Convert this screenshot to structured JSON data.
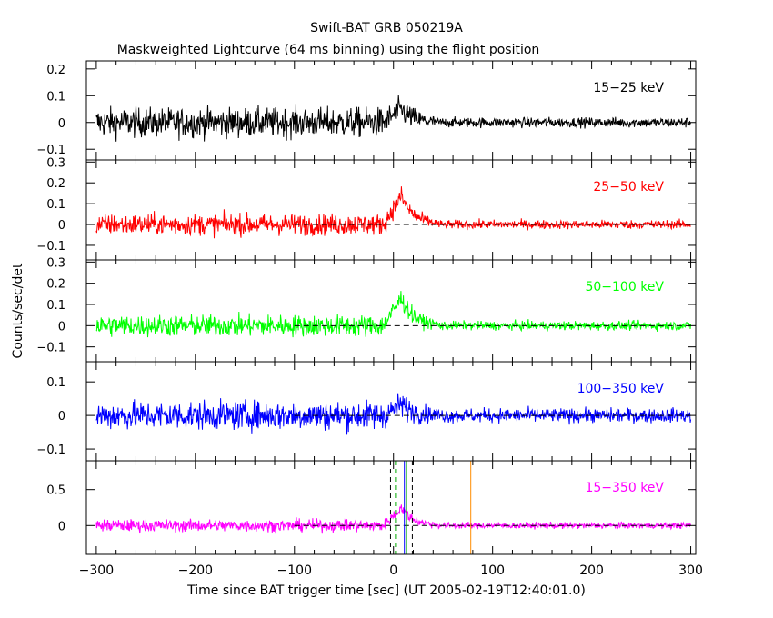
{
  "figure": {
    "title": "Swift-BAT GRB 050219A",
    "subtitle": "Maskweighted Lightcurve (64 ms binning) using the flight position",
    "xlabel": "Time since BAT trigger time [sec] (UT 2005-02-19T12:40:01.0)",
    "ylabel": "Counts/sec/det"
  },
  "chart_data": [
    {
      "type": "line",
      "series": [
        {
          "name": "15-25 keV",
          "color": "#000000"
        }
      ],
      "band_label": "15−25 keV",
      "xlim": [
        -310,
        305
      ],
      "ylim": [
        -0.14,
        0.23
      ],
      "yticks": [
        -0.1,
        0,
        0.1,
        0.2
      ],
      "ytick_labels": [
        "−0.1",
        "0",
        "0.1",
        "0.2"
      ],
      "noise": {
        "pre": 0.065,
        "burst_peak": 0.09,
        "post": 0.022
      },
      "zero_line": false
    },
    {
      "type": "line",
      "series": [
        {
          "name": "25-50 keV",
          "color": "#ff0000"
        }
      ],
      "band_label": "25−50 keV",
      "xlim": [
        -310,
        305
      ],
      "ylim": [
        -0.17,
        0.31
      ],
      "yticks": [
        -0.1,
        0,
        0.1,
        0.2,
        0.3
      ],
      "ytick_labels": [
        "−0.1",
        "0",
        "0.1",
        "0.2",
        "0.3"
      ],
      "noise": {
        "pre": 0.06,
        "burst_peak": 0.25,
        "post": 0.025
      },
      "zero_line": true
    },
    {
      "type": "line",
      "series": [
        {
          "name": "50-100 keV",
          "color": "#00ff00"
        }
      ],
      "band_label": "50−100 keV",
      "xlim": [
        -310,
        305
      ],
      "ylim": [
        -0.17,
        0.31
      ],
      "yticks": [
        -0.1,
        0,
        0.1,
        0.2,
        0.3
      ],
      "ytick_labels": [
        "−0.1",
        "0",
        "0.1",
        "0.2",
        "0.3"
      ],
      "noise": {
        "pre": 0.06,
        "burst_peak": 0.24,
        "post": 0.025
      },
      "zero_line": true
    },
    {
      "type": "line",
      "series": [
        {
          "name": "100-350 keV",
          "color": "#0000ff"
        }
      ],
      "band_label": "100−350 keV",
      "xlim": [
        -310,
        305
      ],
      "ylim": [
        -0.135,
        0.16
      ],
      "yticks": [
        -0.1,
        0,
        0.1
      ],
      "ytick_labels": [
        "−0.1",
        "0",
        "0.1"
      ],
      "noise": {
        "pre": 0.05,
        "burst_peak": 0.06,
        "post": 0.025
      },
      "zero_line": true
    },
    {
      "type": "line",
      "series": [
        {
          "name": "15-350 keV",
          "color": "#ff00ff"
        }
      ],
      "band_label": "15−350 keV",
      "xlim": [
        -310,
        305
      ],
      "ylim": [
        -0.4,
        0.9
      ],
      "yticks": [
        0,
        0.5
      ],
      "ytick_labels": [
        "0",
        "0.5"
      ],
      "noise": {
        "pre": 0.1,
        "burst_peak": 0.45,
        "post": 0.05
      },
      "zero_line": true,
      "markers": [
        {
          "x": -3,
          "color": "#000000",
          "style": "dashed"
        },
        {
          "x": 2,
          "color": "#00aa00",
          "style": "dashed"
        },
        {
          "x": 11,
          "color": "#0000ff",
          "style": "solid"
        },
        {
          "x": 13,
          "color": "#00aa00",
          "style": "solid"
        },
        {
          "x": 19,
          "color": "#000000",
          "style": "dashed"
        },
        {
          "x": 78,
          "color": "#ff8c00",
          "style": "solid"
        }
      ]
    }
  ],
  "xaxis": {
    "ticks": [
      -300,
      -200,
      -100,
      0,
      100,
      200,
      300
    ],
    "tick_labels": [
      "−300",
      "−200",
      "−100",
      "0",
      "100",
      "200",
      "300"
    ],
    "minor_step": 20,
    "burst": {
      "start": -10,
      "peak": 8,
      "end": 45
    }
  }
}
